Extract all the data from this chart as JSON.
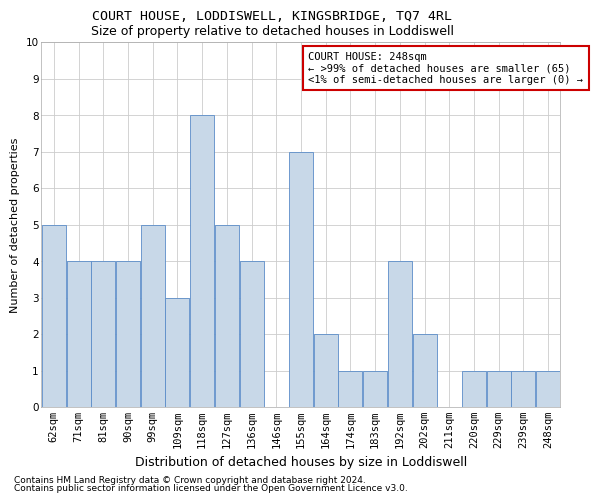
{
  "title": "COURT HOUSE, LODDISWELL, KINGSBRIDGE, TQ7 4RL",
  "subtitle": "Size of property relative to detached houses in Loddiswell",
  "xlabel": "Distribution of detached houses by size in Loddiswell",
  "ylabel": "Number of detached properties",
  "categories": [
    "62sqm",
    "71sqm",
    "81sqm",
    "90sqm",
    "99sqm",
    "109sqm",
    "118sqm",
    "127sqm",
    "136sqm",
    "146sqm",
    "155sqm",
    "164sqm",
    "174sqm",
    "183sqm",
    "192sqm",
    "202sqm",
    "211sqm",
    "220sqm",
    "229sqm",
    "239sqm",
    "248sqm"
  ],
  "values": [
    5,
    4,
    4,
    4,
    5,
    3,
    8,
    5,
    4,
    0,
    7,
    2,
    1,
    1,
    4,
    2,
    0,
    1,
    1,
    1,
    1
  ],
  "bar_color": "#c8d8e8",
  "bar_edge_color": "#5b8cc8",
  "annotation_text": "COURT HOUSE: 248sqm\n← >99% of detached houses are smaller (65)\n<1% of semi-detached houses are larger (0) →",
  "annotation_box_color": "#ffffff",
  "annotation_box_edge_color": "#cc0000",
  "ylim": [
    0,
    10
  ],
  "yticks": [
    0,
    1,
    2,
    3,
    4,
    5,
    6,
    7,
    8,
    9,
    10
  ],
  "footer_line1": "Contains HM Land Registry data © Crown copyright and database right 2024.",
  "footer_line2": "Contains public sector information licensed under the Open Government Licence v3.0.",
  "background_color": "#ffffff",
  "grid_color": "#cccccc",
  "title_fontsize": 9.5,
  "subtitle_fontsize": 9,
  "xlabel_fontsize": 9,
  "ylabel_fontsize": 8,
  "tick_fontsize": 7.5,
  "annotation_fontsize": 7.5,
  "footer_fontsize": 6.5
}
